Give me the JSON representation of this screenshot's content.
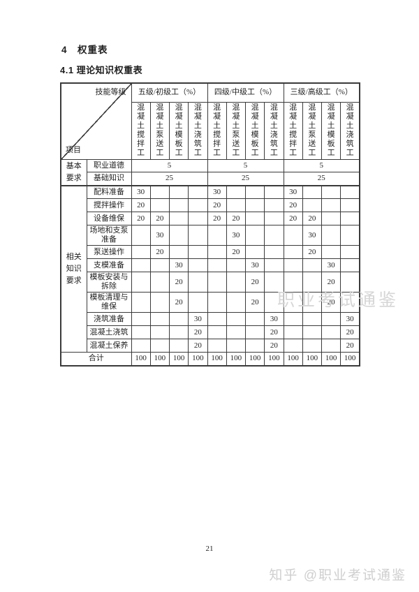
{
  "page": {
    "heading_section": "4　权重表",
    "heading_subsection": "4.1 理论知识权重表",
    "page_number": "21",
    "watermark_middle": "职业考试通鉴",
    "watermark_footer": "知乎 @职业考试通鉴"
  },
  "table": {
    "corner": {
      "skill_level_label": "技能等级",
      "item_label": "项目"
    },
    "level_groups": [
      "五级/初级工（%）",
      "四级/中级工（%）",
      "三级/高级工（%）"
    ],
    "worker_columns": [
      "混凝土搅拌工",
      "混凝土泵送工",
      "混凝土模板工",
      "混凝土浇筑工"
    ],
    "sections": [
      {
        "name": "基本要求",
        "rows": [
          {
            "label": "职业道德",
            "merged_value": "5"
          },
          {
            "label": "基础知识",
            "merged_value": "25"
          }
        ]
      },
      {
        "name": "相关知识要求",
        "rows": [
          {
            "label": "配料准备",
            "values": [
              "30",
              "",
              "",
              ""
            ]
          },
          {
            "label": "搅拌操作",
            "values": [
              "20",
              "",
              "",
              ""
            ]
          },
          {
            "label": "设备维保",
            "values": [
              "20",
              "20",
              "",
              ""
            ]
          },
          {
            "label": "场地和支泵准备",
            "values": [
              "",
              "30",
              "",
              ""
            ]
          },
          {
            "label": "泵送操作",
            "values": [
              "",
              "20",
              "",
              ""
            ]
          },
          {
            "label": "支模准备",
            "values": [
              "",
              "",
              "30",
              ""
            ]
          },
          {
            "label": "模板安装与拆除",
            "values": [
              "",
              "",
              "20",
              ""
            ]
          },
          {
            "label": "模板清理与维保",
            "values": [
              "",
              "",
              "20",
              ""
            ]
          },
          {
            "label": "浇筑准备",
            "values": [
              "",
              "",
              "",
              "30"
            ]
          },
          {
            "label": "混凝土浇筑",
            "values": [
              "",
              "",
              "",
              "20"
            ]
          },
          {
            "label": "混凝土保养",
            "values": [
              "",
              "",
              "",
              "20"
            ]
          }
        ]
      }
    ],
    "total_row": {
      "label": "合计",
      "values": [
        "100",
        "100",
        "100",
        "100",
        "100",
        "100",
        "100",
        "100",
        "100",
        "100",
        "100",
        "100"
      ]
    },
    "colors": {
      "border": "#3a3a3a",
      "text": "#1f1f1f",
      "watermark": "#d6d6d6"
    }
  }
}
